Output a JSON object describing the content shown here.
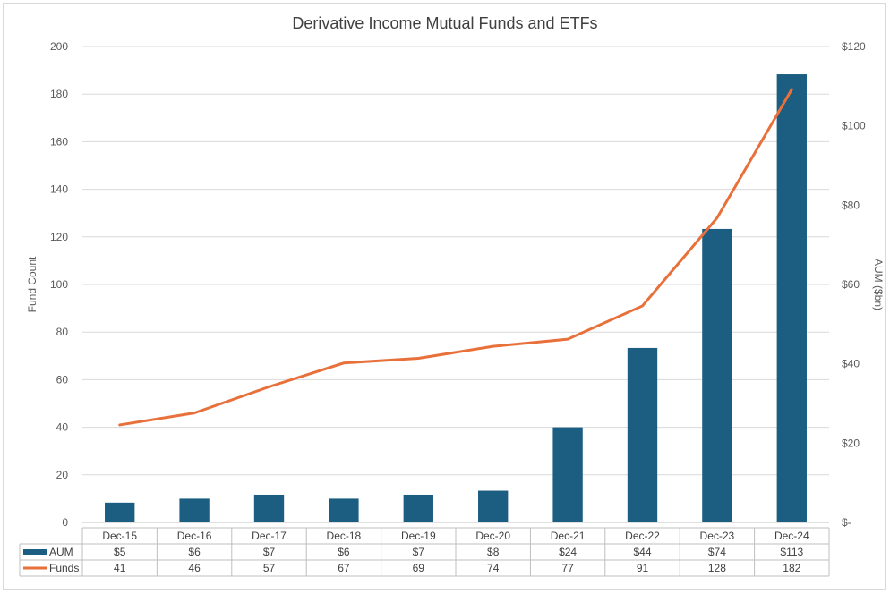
{
  "chart_data": {
    "type": "bar",
    "title": "Derivative Income Mutual Funds and ETFs",
    "categories": [
      "Dec-15",
      "Dec-16",
      "Dec-17",
      "Dec-18",
      "Dec-19",
      "Dec-20",
      "Dec-21",
      "Dec-22",
      "Dec-23",
      "Dec-24"
    ],
    "ylabel_left": "Fund Count",
    "ylabel_right": "AUM ($bn)",
    "ylim_left": [
      0,
      200
    ],
    "ylim_right": [
      0,
      120
    ],
    "yticks_left": [
      "0",
      "20",
      "40",
      "60",
      "80",
      "100",
      "120",
      "140",
      "160",
      "180",
      "200"
    ],
    "yticks_right": [
      "$-",
      "$20",
      "$40",
      "$60",
      "$80",
      "$100",
      "$120"
    ],
    "grid": true,
    "legend": "data-table",
    "series": [
      {
        "name": "AUM",
        "type": "bar",
        "axis": "right",
        "color": "#1b5e82",
        "values": [
          5,
          6,
          7,
          6,
          7,
          8,
          24,
          44,
          74,
          113
        ],
        "labels": [
          "$5",
          "$6",
          "$7",
          "$6",
          "$7",
          "$8",
          "$24",
          "$44",
          "$74",
          "$113"
        ]
      },
      {
        "name": "Funds",
        "type": "line",
        "axis": "left",
        "color": "#e8703a",
        "values": [
          41,
          46,
          57,
          67,
          69,
          74,
          77,
          91,
          128,
          182
        ],
        "labels": [
          "41",
          "46",
          "57",
          "67",
          "69",
          "74",
          "77",
          "91",
          "128",
          "182"
        ]
      }
    ]
  }
}
